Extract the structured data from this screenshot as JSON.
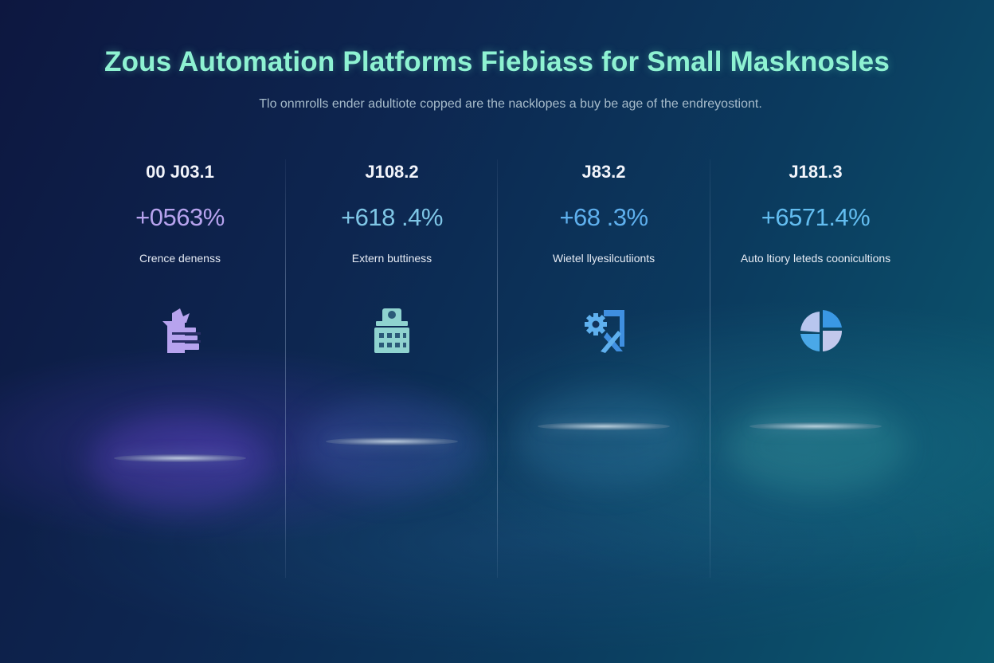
{
  "title": "Zous Automation Platforms Fiebiass for Small Masknosles",
  "subtitle": "Tlo onmrolls ender adultiote copped are the nacklopes a buy be age of the endreyostiont.",
  "stats": [
    {
      "value": "00 J03.1",
      "change": "+0563%",
      "label": "Crence denenss",
      "icon": "document-list-icon",
      "color": "#b7a3ee"
    },
    {
      "value": "J108.2",
      "change": "+618 .4%",
      "label": "Extern buttiness",
      "icon": "building-icon",
      "color": "#7fc6e6"
    },
    {
      "value": "J83.2",
      "change": "+68 .3%",
      "label": "Wietel llyesilcutiionts",
      "icon": "gear-tools-icon",
      "color": "#5fb0ee"
    },
    {
      "value": "J181.3",
      "change": "+6571.4%",
      "label": "Auto ltiory leteds coonicultions",
      "icon": "pie-chart-icon",
      "color": "#63bdf0"
    }
  ]
}
